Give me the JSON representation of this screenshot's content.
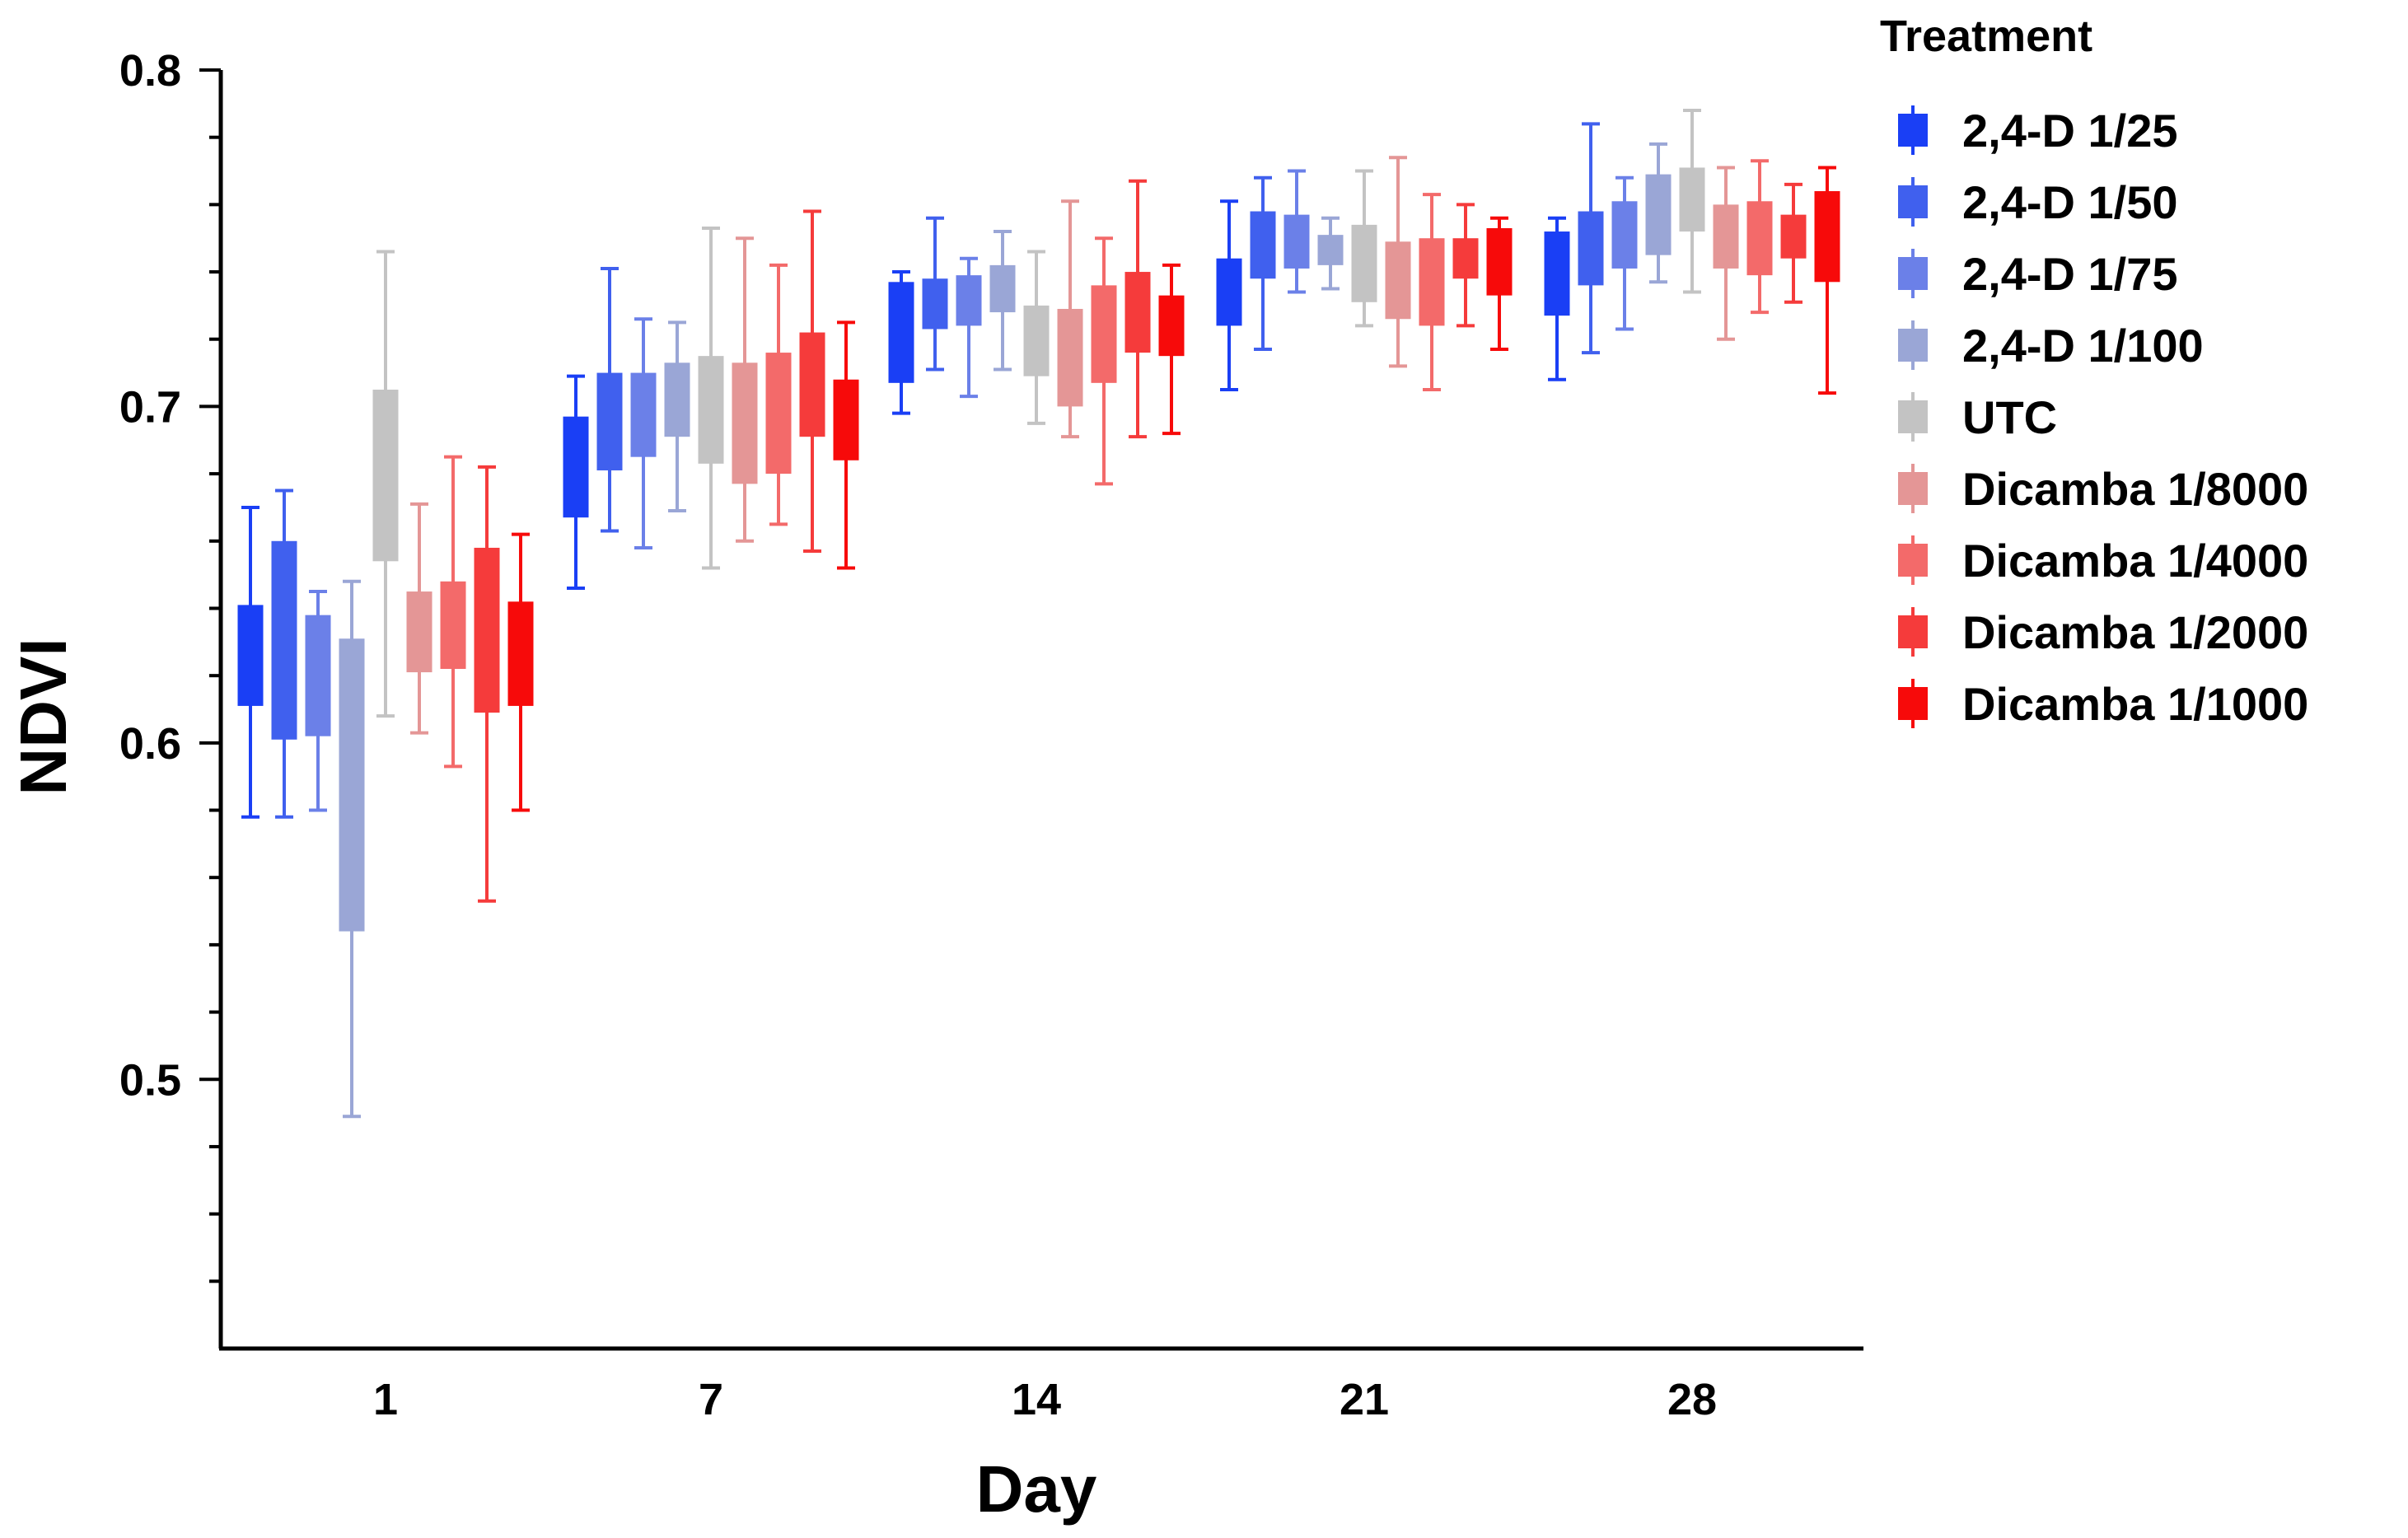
{
  "chart_data": {
    "type": "box",
    "xlabel": "Day",
    "ylabel": "NDVI",
    "ylim": [
      0.42,
      0.8
    ],
    "yticks": [
      "0.5",
      "0.6",
      "0.7",
      "0.8"
    ],
    "ytick_values": [
      0.5,
      0.6,
      0.7,
      0.8
    ],
    "categories": [
      "1",
      "7",
      "14",
      "21",
      "28"
    ],
    "legend_title": "Treatment",
    "legend_position": "right",
    "grid": false,
    "series": [
      {
        "name": "2,4-D 1/25",
        "color": "#1a3ff5",
        "boxes": [
          {
            "min": 0.578,
            "q1": 0.611,
            "q3": 0.641,
            "max": 0.67
          },
          {
            "min": 0.646,
            "q1": 0.667,
            "q3": 0.697,
            "max": 0.709
          },
          {
            "min": 0.698,
            "q1": 0.707,
            "q3": 0.737,
            "max": 0.74
          },
          {
            "min": 0.705,
            "q1": 0.724,
            "q3": 0.744,
            "max": 0.761
          },
          {
            "min": 0.708,
            "q1": 0.727,
            "q3": 0.752,
            "max": 0.756
          }
        ]
      },
      {
        "name": "2,4-D 1/50",
        "color": "#4060ee",
        "boxes": [
          {
            "min": 0.578,
            "q1": 0.601,
            "q3": 0.66,
            "max": 0.675
          },
          {
            "min": 0.663,
            "q1": 0.681,
            "q3": 0.71,
            "max": 0.741
          },
          {
            "min": 0.711,
            "q1": 0.723,
            "q3": 0.738,
            "max": 0.756
          },
          {
            "min": 0.717,
            "q1": 0.738,
            "q3": 0.758,
            "max": 0.768
          },
          {
            "min": 0.716,
            "q1": 0.736,
            "q3": 0.758,
            "max": 0.784
          }
        ]
      },
      {
        "name": "2,4-D 1/75",
        "color": "#6b80e8",
        "boxes": [
          {
            "min": 0.58,
            "q1": 0.602,
            "q3": 0.638,
            "max": 0.645
          },
          {
            "min": 0.658,
            "q1": 0.685,
            "q3": 0.71,
            "max": 0.726
          },
          {
            "min": 0.703,
            "q1": 0.724,
            "q3": 0.739,
            "max": 0.744
          },
          {
            "min": 0.734,
            "q1": 0.741,
            "q3": 0.757,
            "max": 0.77
          },
          {
            "min": 0.723,
            "q1": 0.741,
            "q3": 0.761,
            "max": 0.768
          }
        ]
      },
      {
        "name": "2,4-D 1/100",
        "color": "#9aa6d6",
        "boxes": [
          {
            "min": 0.489,
            "q1": 0.544,
            "q3": 0.631,
            "max": 0.648
          },
          {
            "min": 0.669,
            "q1": 0.691,
            "q3": 0.713,
            "max": 0.725
          },
          {
            "min": 0.711,
            "q1": 0.728,
            "q3": 0.742,
            "max": 0.752
          },
          {
            "min": 0.735,
            "q1": 0.742,
            "q3": 0.751,
            "max": 0.756
          },
          {
            "min": 0.737,
            "q1": 0.745,
            "q3": 0.769,
            "max": 0.778
          }
        ]
      },
      {
        "name": "UTC",
        "color": "#c3c3c3",
        "boxes": [
          {
            "min": 0.608,
            "q1": 0.654,
            "q3": 0.705,
            "max": 0.746
          },
          {
            "min": 0.652,
            "q1": 0.683,
            "q3": 0.715,
            "max": 0.753
          },
          {
            "min": 0.695,
            "q1": 0.709,
            "q3": 0.73,
            "max": 0.746
          },
          {
            "min": 0.724,
            "q1": 0.731,
            "q3": 0.754,
            "max": 0.77
          },
          {
            "min": 0.734,
            "q1": 0.752,
            "q3": 0.771,
            "max": 0.788
          }
        ]
      },
      {
        "name": "Dicamba 1/8000",
        "color": "#e49696",
        "boxes": [
          {
            "min": 0.603,
            "q1": 0.621,
            "q3": 0.645,
            "max": 0.671
          },
          {
            "min": 0.66,
            "q1": 0.677,
            "q3": 0.713,
            "max": 0.75
          },
          {
            "min": 0.691,
            "q1": 0.7,
            "q3": 0.729,
            "max": 0.761
          },
          {
            "min": 0.712,
            "q1": 0.726,
            "q3": 0.749,
            "max": 0.774
          },
          {
            "min": 0.72,
            "q1": 0.741,
            "q3": 0.76,
            "max": 0.771
          }
        ]
      },
      {
        "name": "Dicamba 1/4000",
        "color": "#f36a6a",
        "boxes": [
          {
            "min": 0.593,
            "q1": 0.622,
            "q3": 0.648,
            "max": 0.685
          },
          {
            "min": 0.665,
            "q1": 0.68,
            "q3": 0.716,
            "max": 0.742
          },
          {
            "min": 0.677,
            "q1": 0.707,
            "q3": 0.736,
            "max": 0.75
          },
          {
            "min": 0.705,
            "q1": 0.724,
            "q3": 0.75,
            "max": 0.763
          },
          {
            "min": 0.728,
            "q1": 0.739,
            "q3": 0.761,
            "max": 0.773
          }
        ]
      },
      {
        "name": "Dicamba 1/2000",
        "color": "#f53b3b",
        "boxes": [
          {
            "min": 0.553,
            "q1": 0.609,
            "q3": 0.658,
            "max": 0.682
          },
          {
            "min": 0.657,
            "q1": 0.691,
            "q3": 0.722,
            "max": 0.758
          },
          {
            "min": 0.691,
            "q1": 0.716,
            "q3": 0.74,
            "max": 0.767
          },
          {
            "min": 0.724,
            "q1": 0.738,
            "q3": 0.75,
            "max": 0.76
          },
          {
            "min": 0.731,
            "q1": 0.744,
            "q3": 0.757,
            "max": 0.766
          }
        ]
      },
      {
        "name": "Dicamba 1/1000",
        "color": "#f70a0a",
        "boxes": [
          {
            "min": 0.58,
            "q1": 0.611,
            "q3": 0.642,
            "max": 0.662
          },
          {
            "min": 0.652,
            "q1": 0.684,
            "q3": 0.708,
            "max": 0.725
          },
          {
            "min": 0.692,
            "q1": 0.715,
            "q3": 0.733,
            "max": 0.742
          },
          {
            "min": 0.717,
            "q1": 0.733,
            "q3": 0.753,
            "max": 0.756
          },
          {
            "min": 0.704,
            "q1": 0.737,
            "q3": 0.764,
            "max": 0.771
          }
        ]
      }
    ]
  }
}
